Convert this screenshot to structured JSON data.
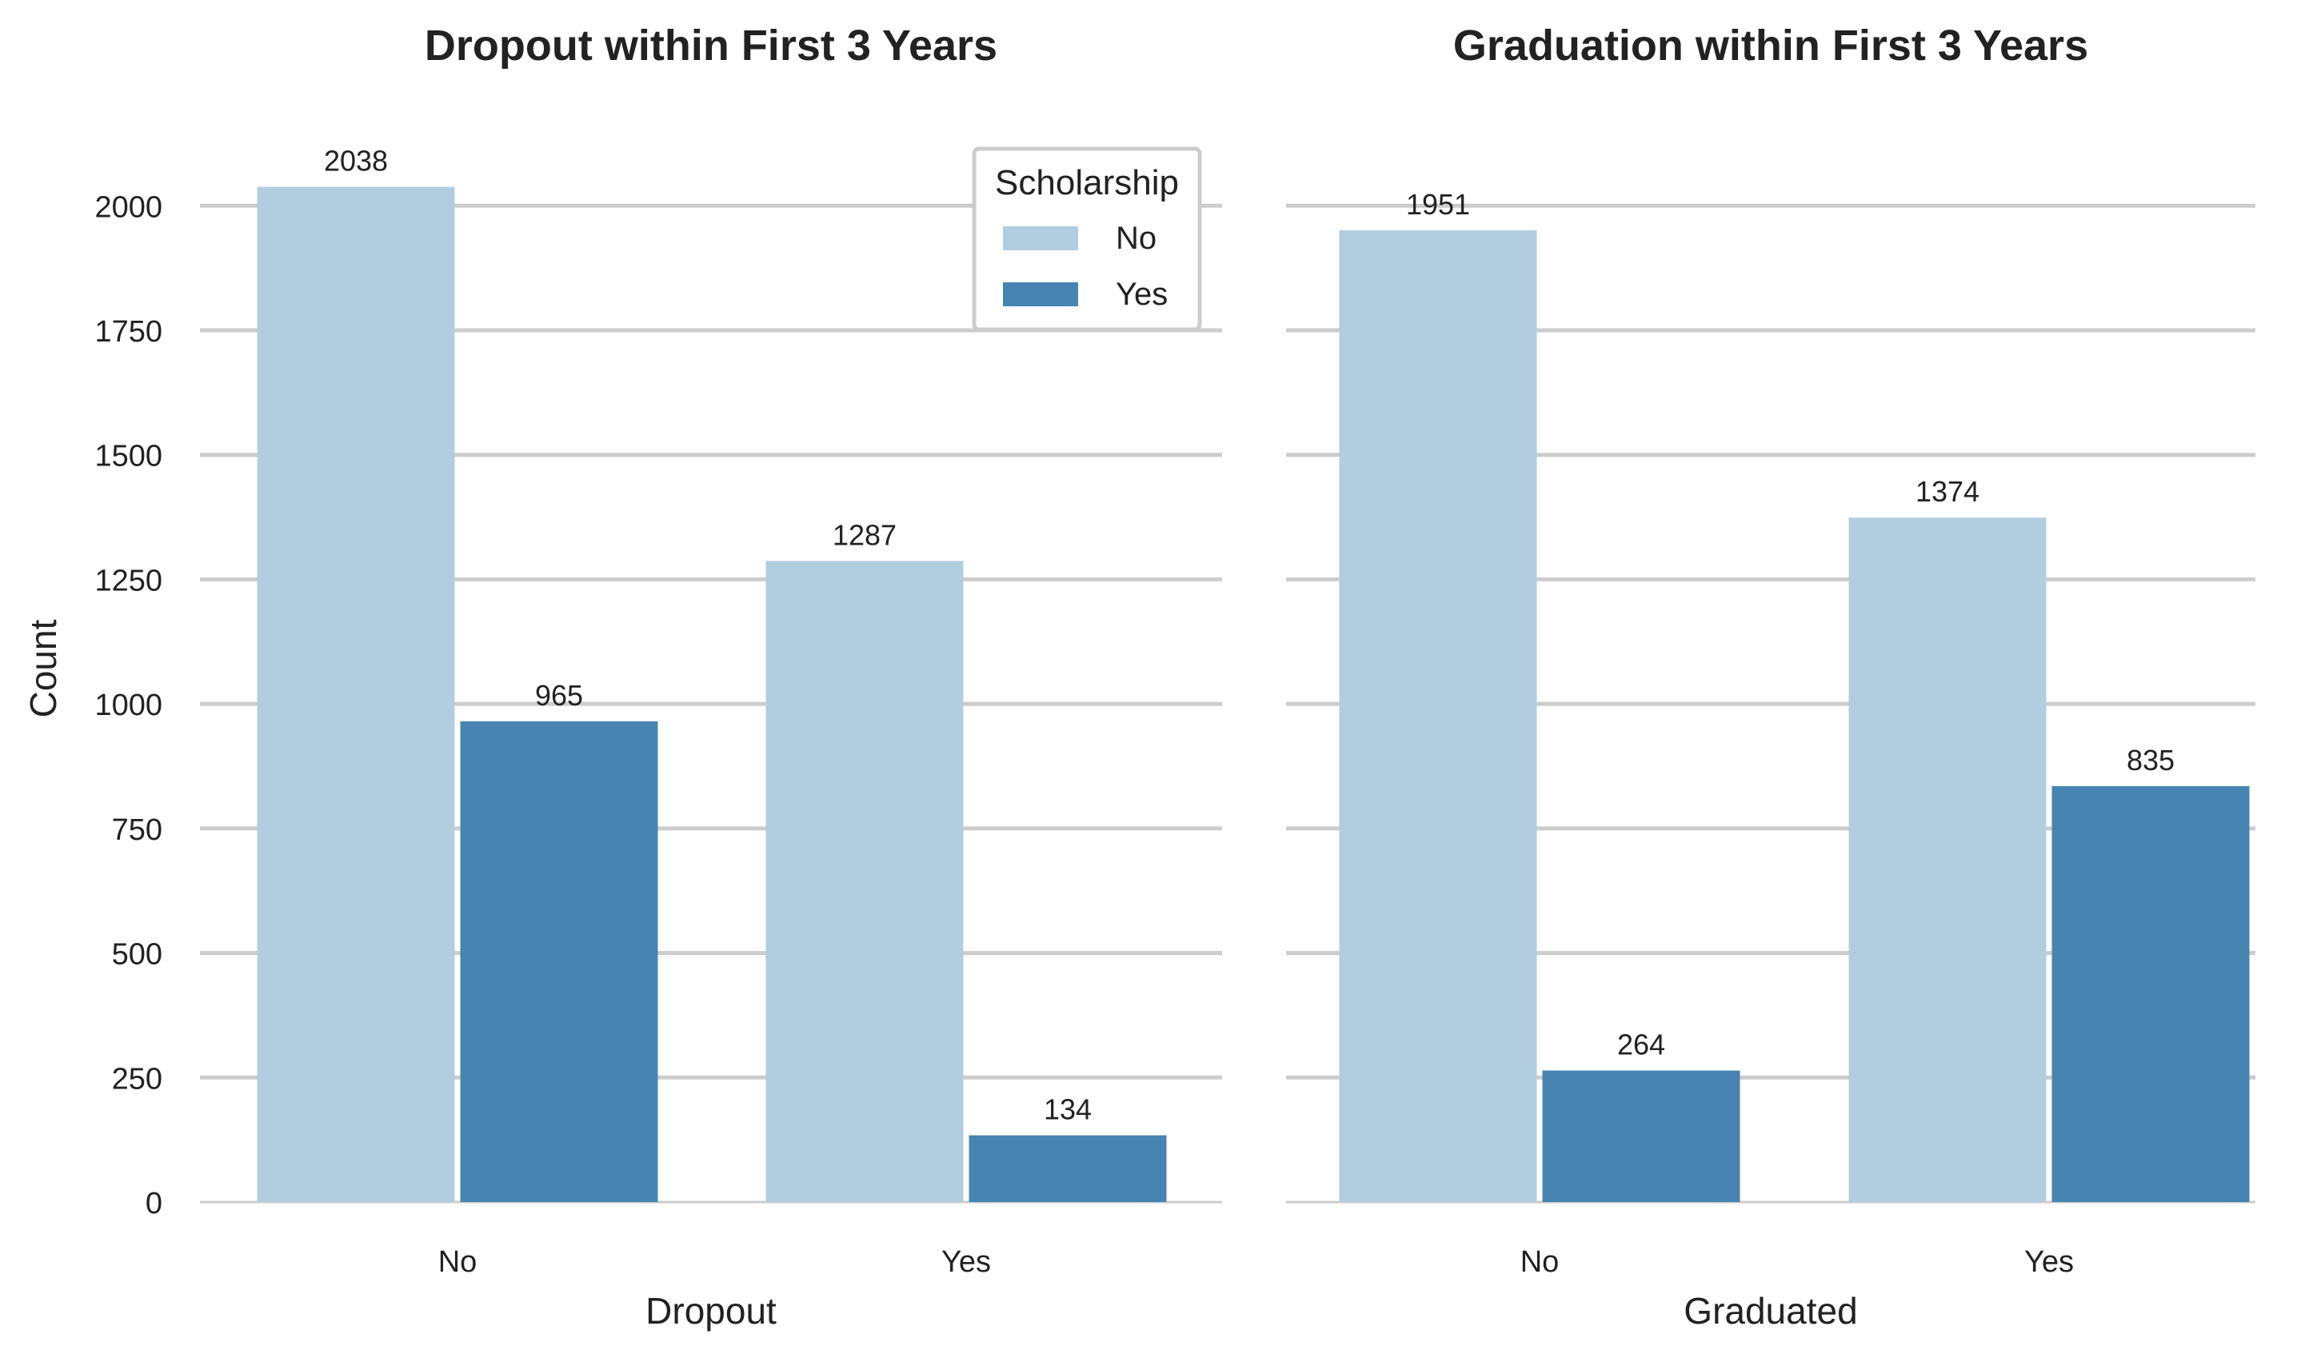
{
  "chart_data": [
    {
      "type": "bar",
      "title": "Dropout within First 3 Years",
      "xlabel": "Dropout",
      "ylabel": "Count",
      "categories": [
        "No",
        "Yes"
      ],
      "series": [
        {
          "name": "No",
          "values": [
            2038,
            1287
          ]
        },
        {
          "name": "Yes",
          "values": [
            965,
            134
          ]
        }
      ],
      "ylim": [
        0,
        2100
      ],
      "yticks": [
        0,
        250,
        500,
        750,
        1000,
        1250,
        1500,
        1750,
        2000
      ],
      "grid": true,
      "legend": {
        "title": "Scholarship",
        "placement": "top-right"
      }
    },
    {
      "type": "bar",
      "title": "Graduation within First 3 Years",
      "xlabel": "Graduated",
      "ylabel": "",
      "categories": [
        "No",
        "Yes"
      ],
      "series": [
        {
          "name": "No",
          "values": [
            1951,
            1374
          ]
        },
        {
          "name": "Yes",
          "values": [
            264,
            835
          ]
        }
      ],
      "ylim": [
        0,
        2100
      ],
      "yticks": [
        0,
        250,
        500,
        750,
        1000,
        1250,
        1500,
        1750,
        2000
      ],
      "grid": true
    }
  ],
  "colors": {
    "series_no": "#b3cde0",
    "series_yes": "#4884b1",
    "grid": "#cccccc"
  }
}
